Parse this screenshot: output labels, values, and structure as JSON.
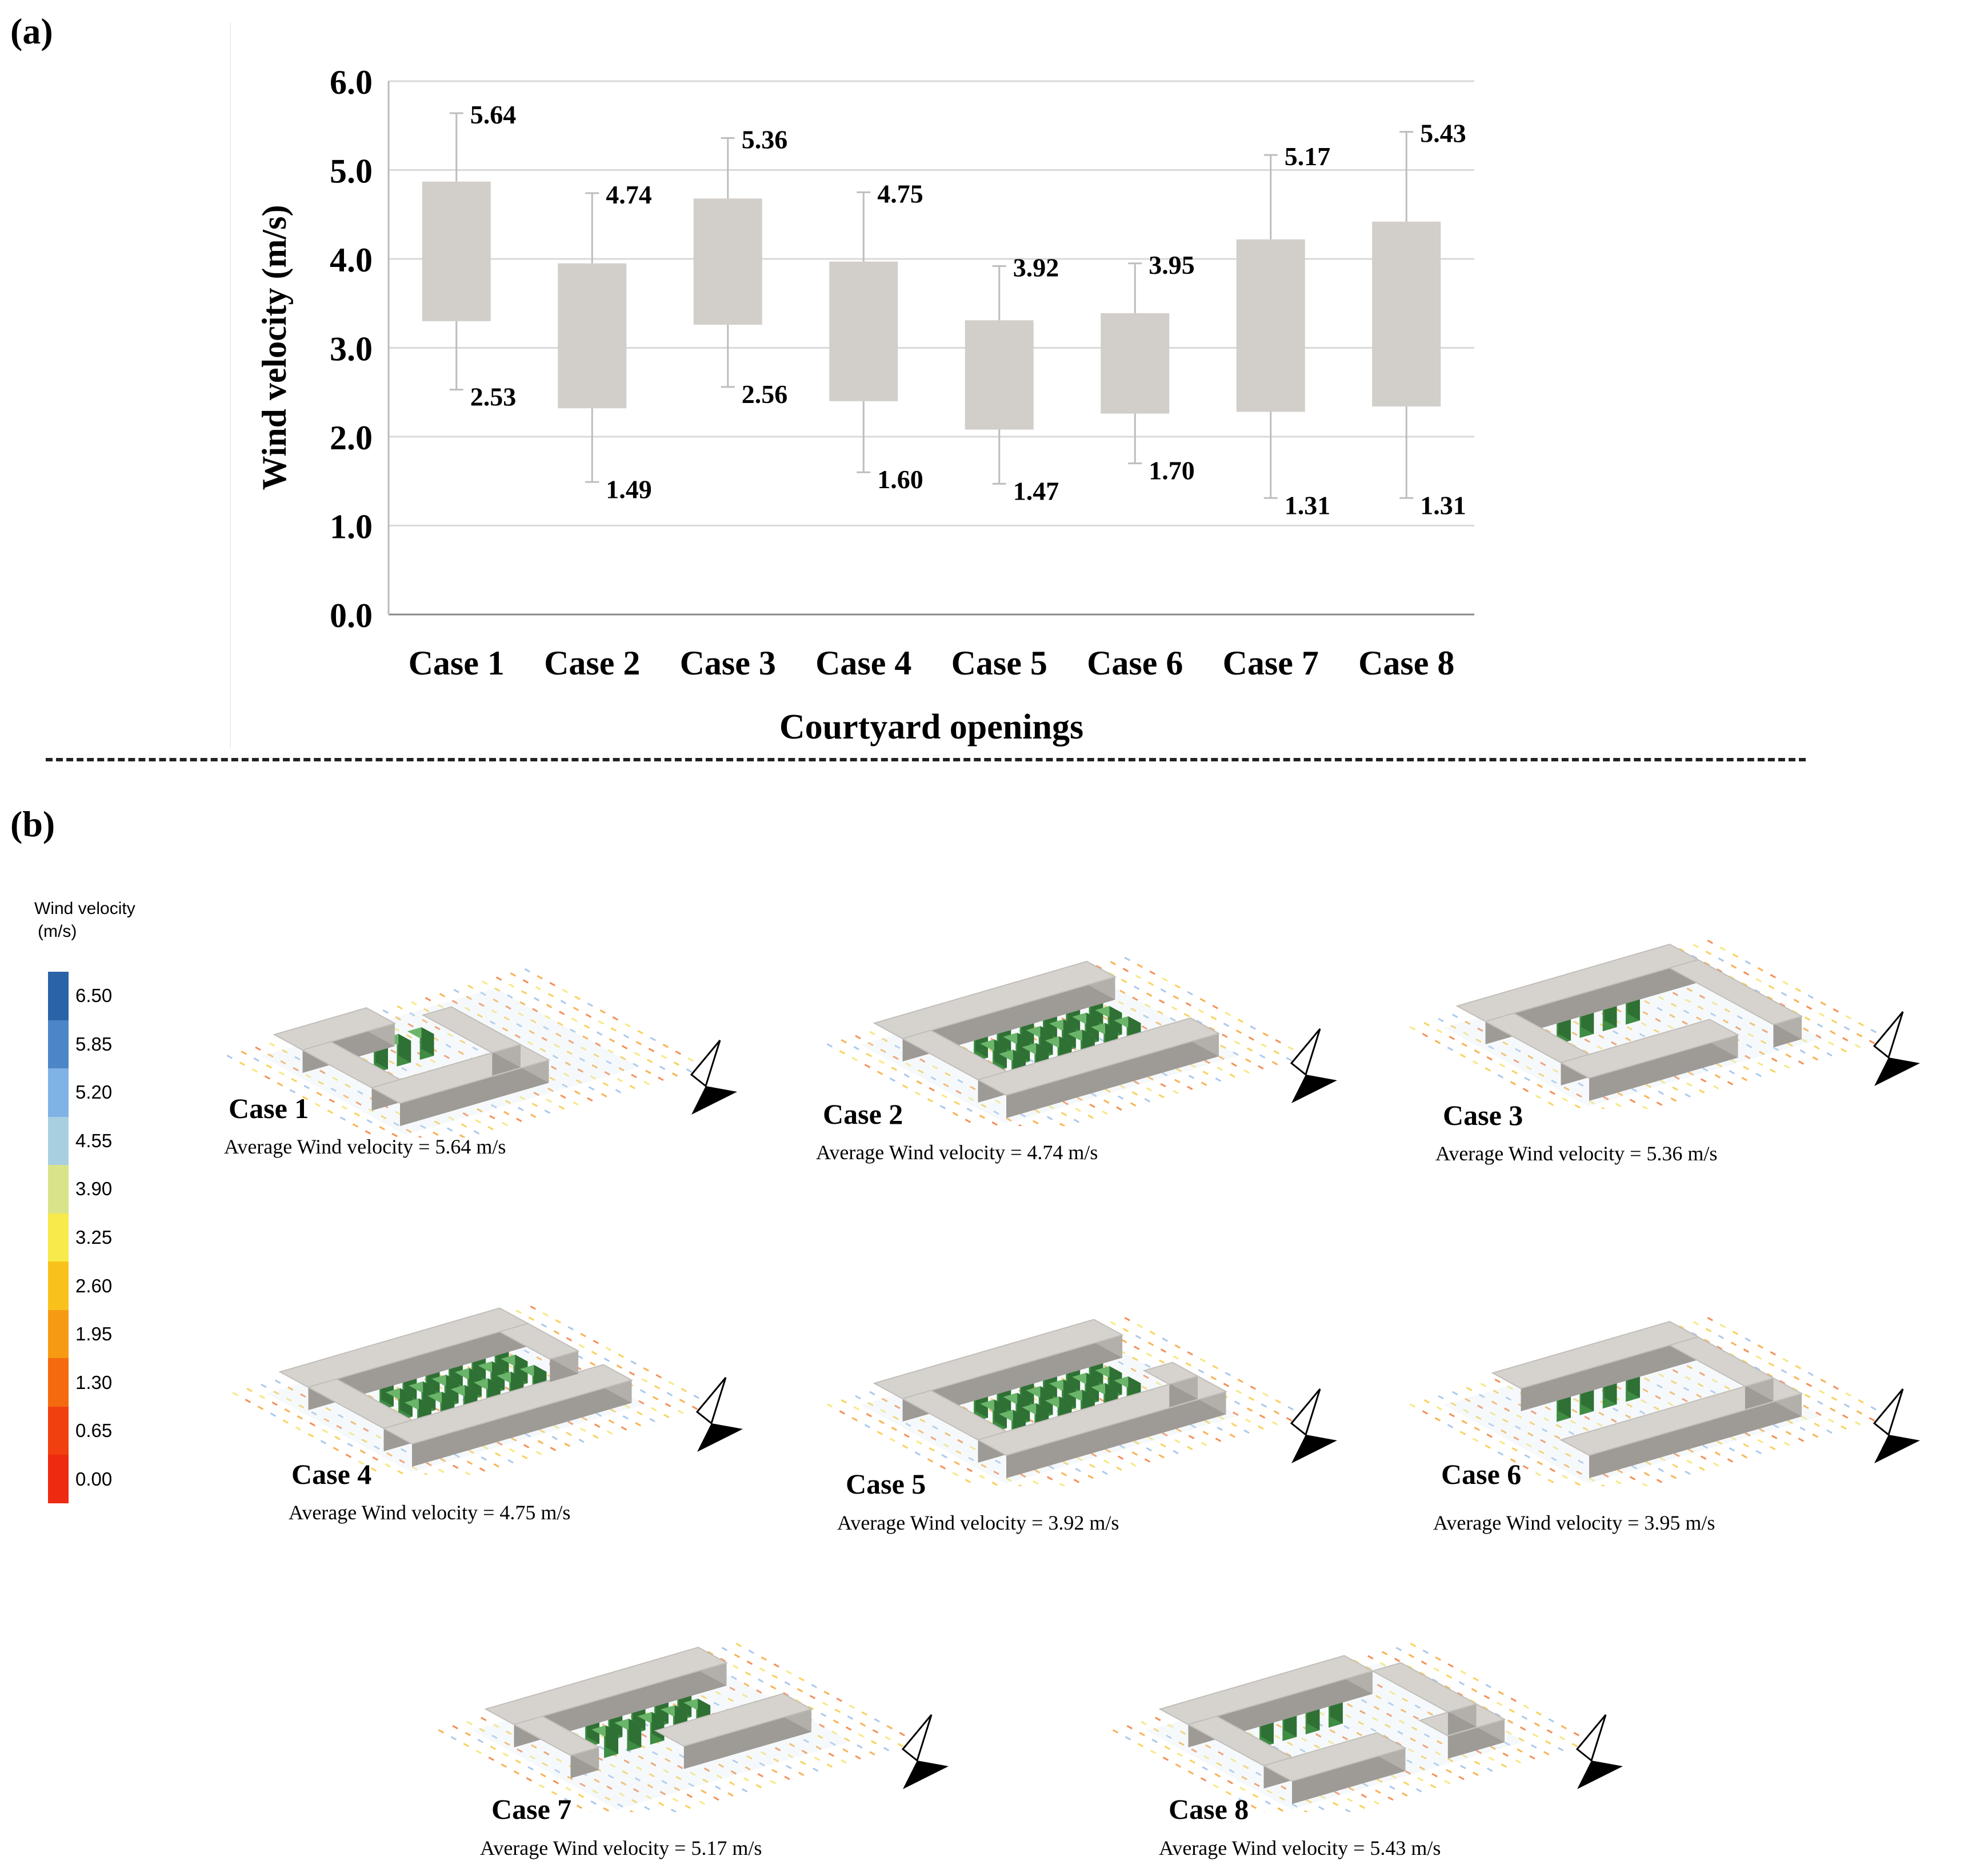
{
  "panels": {
    "a": "(a)",
    "b": "(b)"
  },
  "chart_data": {
    "type": "box",
    "title": "",
    "xlabel": "Courtyard openings",
    "ylabel": "Wind velocity (m/s)",
    "ylim": [
      0,
      6
    ],
    "yticks": [
      "0.0",
      "1.0",
      "2.0",
      "3.0",
      "4.0",
      "5.0",
      "6.0"
    ],
    "grid": true,
    "categories": [
      "Case 1",
      "Case 2",
      "Case 3",
      "Case 4",
      "Case 5",
      "Case 6",
      "Case 7",
      "Case 8"
    ],
    "series": [
      {
        "name": "Case 1",
        "min": 2.53,
        "q1": 3.3,
        "q3": 4.87,
        "max": 5.64,
        "min_label": "2.53",
        "max_label": "5.64"
      },
      {
        "name": "Case 2",
        "min": 1.49,
        "q1": 2.32,
        "q3": 3.95,
        "max": 4.74,
        "min_label": "1.49",
        "max_label": "4.74"
      },
      {
        "name": "Case 3",
        "min": 2.56,
        "q1": 3.26,
        "q3": 4.68,
        "max": 5.36,
        "min_label": "2.56",
        "max_label": "5.36"
      },
      {
        "name": "Case 4",
        "min": 1.6,
        "q1": 2.4,
        "q3": 3.97,
        "max": 4.75,
        "min_label": "1.60",
        "max_label": "4.75"
      },
      {
        "name": "Case 5",
        "min": 1.47,
        "q1": 2.08,
        "q3": 3.31,
        "max": 3.92,
        "min_label": "1.47",
        "max_label": "3.92"
      },
      {
        "name": "Case 6",
        "min": 1.7,
        "q1": 2.26,
        "q3": 3.39,
        "max": 3.95,
        "min_label": "1.70",
        "max_label": "3.95"
      },
      {
        "name": "Case 7",
        "min": 1.31,
        "q1": 2.28,
        "q3": 4.22,
        "max": 5.17,
        "min_label": "1.31",
        "max_label": "5.17"
      },
      {
        "name": "Case 8",
        "min": 1.31,
        "q1": 2.34,
        "q3": 4.42,
        "max": 5.43,
        "min_label": "1.31",
        "max_label": "5.43"
      }
    ]
  },
  "legend": {
    "title_line1": "Wind velocity",
    "title_line2": "(m/s)",
    "ticks": [
      "6.50",
      "5.85",
      "5.20",
      "4.55",
      "3.90",
      "3.25",
      "2.60",
      "1.95",
      "1.30",
      "0.65",
      "0.00"
    ],
    "colors": [
      "#2b63a8",
      "#4d86c8",
      "#7fb2e5",
      "#a8cfe0",
      "#d9e38a",
      "#f7ea4a",
      "#f9c21a",
      "#f79a12",
      "#f56a0f",
      "#f23f10",
      "#ee2a10"
    ]
  },
  "cases": [
    {
      "title": "Case 1",
      "avg": "Average Wind velocity = 5.64 m/s"
    },
    {
      "title": "Case 2",
      "avg": "Average Wind velocity = 4.74 m/s"
    },
    {
      "title": "Case 3",
      "avg": "Average Wind velocity = 5.36 m/s"
    },
    {
      "title": "Case 4",
      "avg": "Average Wind velocity = 4.75 m/s"
    },
    {
      "title": "Case 5",
      "avg": "Average Wind velocity = 3.92 m/s"
    },
    {
      "title": "Case 6",
      "avg": "Average Wind velocity = 3.95 m/s"
    },
    {
      "title": "Case 7",
      "avg": "Average Wind velocity = 5.17 m/s"
    },
    {
      "title": "Case 8",
      "avg": "Average Wind velocity = 5.43 m/s"
    }
  ]
}
